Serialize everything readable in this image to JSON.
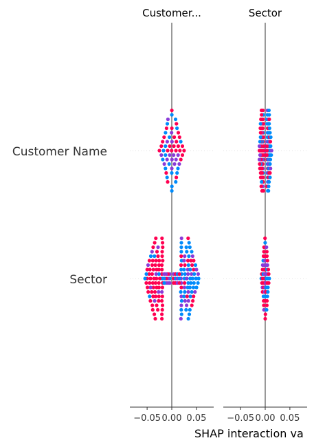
{
  "chart_data": {
    "type": "scatter",
    "plot_kind": "SHAP interaction summary (beeswarm matrix)",
    "features": [
      "Customer Name",
      "Sector"
    ],
    "column_titles": [
      "Customer...",
      "Sector"
    ],
    "row_labels": [
      "Customer Name",
      "Sector"
    ],
    "xlabel": "SHAP interaction va",
    "xticks": [
      {
        "value": -0.05,
        "label": "−0.05"
      },
      {
        "value": 0.0,
        "label": "0.00"
      },
      {
        "value": 0.05,
        "label": "0.05"
      }
    ],
    "columns_xlim": [
      [
        -0.085,
        0.085
      ],
      [
        -0.085,
        0.085
      ]
    ],
    "cell_value_ranges": [
      [
        [
          -0.025,
          0.025
        ],
        [
          -0.01,
          0.012
        ]
      ],
      [
        [
          -0.055,
          0.055
        ],
        [
          -0.008,
          0.008
        ]
      ]
    ],
    "colors": {
      "high_feature_value": "#ff0051",
      "low_feature_value": "#008bfb",
      "mid_feature_value": "#8a3ad8",
      "zero_line": "#999999",
      "axis": "#333333",
      "row_guide": "#e3e3e3"
    },
    "grid": false,
    "legend": "none"
  }
}
